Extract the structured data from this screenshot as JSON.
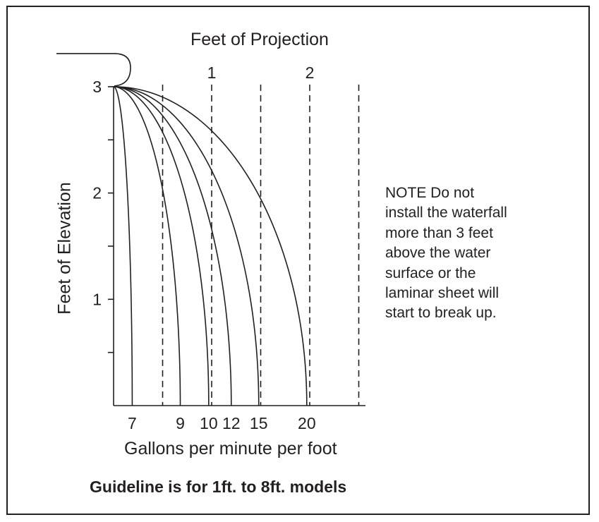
{
  "chart_data": {
    "type": "line",
    "title": "Feet of Projection",
    "xlabel": "Gallons per minute per foot",
    "ylabel": "Feet of Elevation",
    "xlim": [
      -0.02,
      2.55
    ],
    "ylim": [
      0,
      3
    ],
    "top_axis_ticks": [
      {
        "value": 1,
        "label": "1"
      },
      {
        "value": 2,
        "label": "2"
      }
    ],
    "y_ticks": [
      {
        "value": 0.5,
        "label": ""
      },
      {
        "value": 1,
        "label": "1"
      },
      {
        "value": 1.5,
        "label": ""
      },
      {
        "value": 2,
        "label": "2"
      },
      {
        "value": 2.5,
        "label": ""
      },
      {
        "value": 3,
        "label": "3"
      }
    ],
    "dashed_guides": [
      0.5,
      1,
      1.5,
      2,
      2.5
    ],
    "series": [
      {
        "name": "7",
        "label": "7",
        "projection_at_bottom": 0.19,
        "label_x": 0.19
      },
      {
        "name": "9",
        "label": "9",
        "projection_at_bottom": 0.68,
        "label_x": 0.68
      },
      {
        "name": "10",
        "label": "10",
        "projection_at_bottom": 0.97,
        "label_x": 0.97
      },
      {
        "name": "12",
        "label": "12",
        "projection_at_bottom": 1.2,
        "label_x": 1.2
      },
      {
        "name": "15",
        "label": "15",
        "projection_at_bottom": 1.48,
        "label_x": 1.48
      },
      {
        "name": "20",
        "label": "20",
        "projection_at_bottom": 1.97,
        "label_x": 1.97
      }
    ],
    "ledge": "weir lip at 3 ft elevation"
  },
  "note": {
    "lines": [
      "NOTE  Do not",
      "install the waterfall",
      "more than 3 feet",
      "above the water",
      "surface or the",
      "laminar sheet will",
      "start to break up."
    ]
  },
  "caption": "Guideline is for 1ft. to 8ft. models",
  "colors": {
    "ink": "#231f20",
    "background": "#ffffff"
  }
}
